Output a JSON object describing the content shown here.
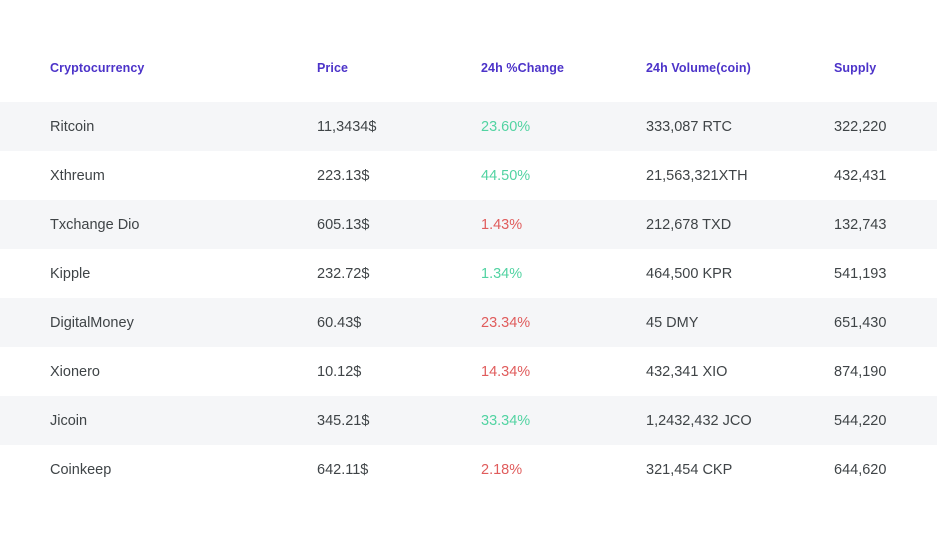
{
  "colors": {
    "header_text": "#4c33c9",
    "cell_text": "#3f4447",
    "positive_change": "#52d3a2",
    "negative_change": "#e05c5c",
    "row_stripe": "#f5f6f8",
    "background": "#ffffff"
  },
  "table": {
    "columns": [
      {
        "key": "name",
        "label": "Cryptocurrency"
      },
      {
        "key": "price",
        "label": "Price"
      },
      {
        "key": "change",
        "label": "24h %Change"
      },
      {
        "key": "volume",
        "label": "24h Volume(coin)"
      },
      {
        "key": "supply",
        "label": "Supply"
      }
    ],
    "rows": [
      {
        "name": "Ritcoin",
        "price": "11,3434$",
        "change": "23.60%",
        "direction": "up",
        "volume": "333,087 RTC",
        "supply": "322,220"
      },
      {
        "name": "Xthreum",
        "price": "223.13$",
        "change": "44.50%",
        "direction": "up",
        "volume": "21,563,321XTH",
        "supply": "432,431"
      },
      {
        "name": "Txchange Dio",
        "price": "605.13$",
        "change": "1.43%",
        "direction": "down",
        "volume": "212,678 TXD",
        "supply": "132,743"
      },
      {
        "name": "Kipple",
        "price": "232.72$",
        "change": "1.34%",
        "direction": "up",
        "volume": "464,500 KPR",
        "supply": "541,193"
      },
      {
        "name": "DigitalMoney",
        "price": "60.43$",
        "change": "23.34%",
        "direction": "down",
        "volume": "45 DMY",
        "supply": "651,430"
      },
      {
        "name": "Xionero",
        "price": "10.12$",
        "change": "14.34%",
        "direction": "down",
        "volume": "432,341 XIO",
        "supply": "874,190"
      },
      {
        "name": "Jicoin",
        "price": "345.21$",
        "change": "33.34%",
        "direction": "up",
        "volume": "1,2432,432 JCO",
        "supply": "544,220"
      },
      {
        "name": "Coinkeep",
        "price": "642.11$",
        "change": "2.18%",
        "direction": "down",
        "volume": "321,454 CKP",
        "supply": "644,620"
      }
    ]
  },
  "chart_data": {
    "type": "table",
    "title": "",
    "columns": [
      "Cryptocurrency",
      "Price",
      "24h %Change",
      "24h Volume(coin)",
      "Supply"
    ],
    "rows": [
      [
        "Ritcoin",
        "11,3434$",
        "23.60%",
        "333,087 RTC",
        "322,220"
      ],
      [
        "Xthreum",
        "223.13$",
        "44.50%",
        "21,563,321XTH",
        "432,431"
      ],
      [
        "Txchange Dio",
        "605.13$",
        "1.43%",
        "212,678 TXD",
        "132,743"
      ],
      [
        "Kipple",
        "232.72$",
        "1.34%",
        "464,500 KPR",
        "541,193"
      ],
      [
        "DigitalMoney",
        "60.43$",
        "23.34%",
        "45 DMY",
        "651,430"
      ],
      [
        "Xionero",
        "10.12$",
        "14.34%",
        "432,341 XIO",
        "874,190"
      ],
      [
        "Jicoin",
        "345.21$",
        "33.34%",
        "1,2432,432 JCO",
        "544,220"
      ],
      [
        "Coinkeep",
        "642.11$",
        "2.18%",
        "321,454 CKP",
        "644,620"
      ]
    ]
  }
}
